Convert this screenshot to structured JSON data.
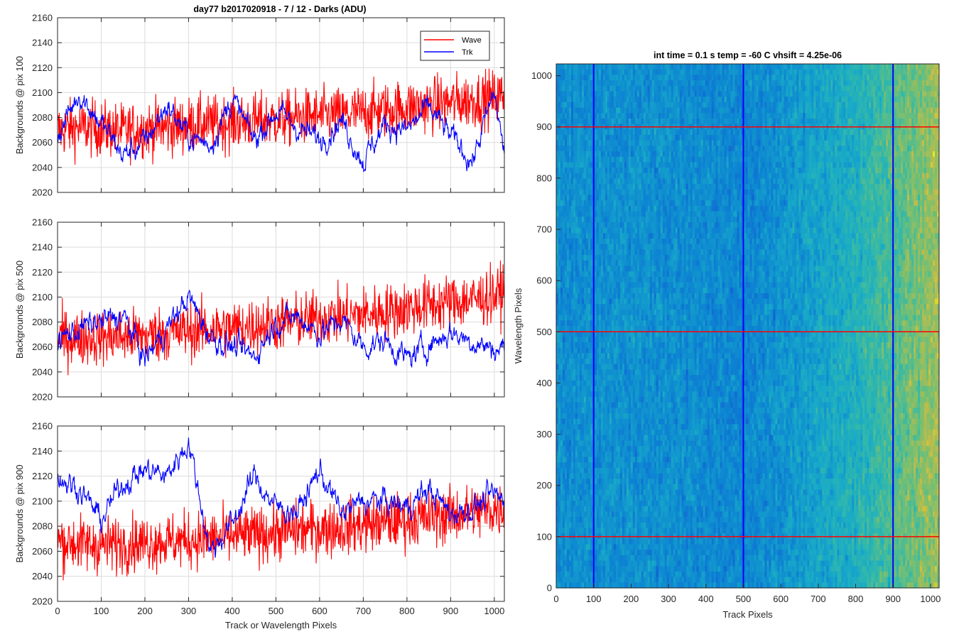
{
  "figure_title": "day77 b2017020918 - 7 / 12 - Darks (ADU)",
  "colors": {
    "wave": "#ff0000",
    "trk": "#0000ff",
    "grid": "#dcdcdc",
    "axis": "#262626"
  },
  "chart_data": [
    {
      "type": "line",
      "ylabel": "Backgrounds @ pix 100",
      "xlim": [
        0,
        1023
      ],
      "ylim": [
        2020,
        2160
      ],
      "xticks": [
        0,
        100,
        200,
        300,
        400,
        500,
        600,
        700,
        800,
        900,
        1000
      ],
      "yticks": [
        2020,
        2040,
        2060,
        2080,
        2100,
        2120,
        2140,
        2160
      ],
      "xticklabels_visible": false,
      "grid": true,
      "legend": {
        "position": "top-right",
        "entries": [
          "Wave",
          "Trk"
        ]
      },
      "series": [
        {
          "name": "Wave",
          "color": "#ff0000",
          "x": [
            0,
            50,
            100,
            150,
            200,
            250,
            300,
            350,
            400,
            450,
            500,
            550,
            600,
            650,
            700,
            750,
            800,
            850,
            900,
            950,
            1000,
            1023
          ],
          "values": [
            2070,
            2072,
            2071,
            2069,
            2071,
            2072,
            2074,
            2075,
            2076,
            2077,
            2078,
            2080,
            2081,
            2082,
            2084,
            2086,
            2088,
            2090,
            2092,
            2094,
            2096,
            2098
          ]
        },
        {
          "name": "Trk",
          "color": "#0000ff",
          "x": [
            0,
            50,
            100,
            150,
            200,
            250,
            300,
            350,
            400,
            450,
            500,
            550,
            600,
            650,
            700,
            750,
            800,
            850,
            900,
            950,
            1000,
            1023
          ],
          "values": [
            2065,
            2100,
            2075,
            2050,
            2060,
            2090,
            2065,
            2058,
            2095,
            2062,
            2085,
            2072,
            2062,
            2078,
            2045,
            2075,
            2070,
            2088,
            2065,
            2045,
            2100,
            2050
          ]
        }
      ]
    },
    {
      "type": "line",
      "ylabel": "Backgrounds @ pix 500",
      "xlim": [
        0,
        1023
      ],
      "ylim": [
        2020,
        2160
      ],
      "xticks": [
        0,
        100,
        200,
        300,
        400,
        500,
        600,
        700,
        800,
        900,
        1000
      ],
      "yticks": [
        2020,
        2040,
        2060,
        2080,
        2100,
        2120,
        2140,
        2160
      ],
      "xticklabels_visible": false,
      "grid": true,
      "series": [
        {
          "name": "Wave",
          "color": "#ff0000",
          "x": [
            0,
            50,
            100,
            150,
            200,
            250,
            300,
            350,
            400,
            450,
            500,
            550,
            600,
            650,
            700,
            750,
            800,
            850,
            900,
            950,
            1000,
            1023
          ],
          "values": [
            2068,
            2067,
            2068,
            2068,
            2069,
            2071,
            2073,
            2074,
            2075,
            2077,
            2079,
            2081,
            2083,
            2085,
            2086,
            2088,
            2091,
            2094,
            2096,
            2098,
            2101,
            2105
          ]
        },
        {
          "name": "Trk",
          "color": "#0000ff",
          "x": [
            0,
            50,
            100,
            150,
            200,
            250,
            300,
            350,
            400,
            450,
            500,
            550,
            600,
            650,
            700,
            750,
            800,
            850,
            900,
            950,
            1000,
            1023
          ],
          "values": [
            2065,
            2075,
            2080,
            2085,
            2050,
            2075,
            2100,
            2068,
            2060,
            2052,
            2080,
            2085,
            2070,
            2082,
            2060,
            2065,
            2050,
            2062,
            2072,
            2065,
            2058,
            2060
          ]
        }
      ]
    },
    {
      "type": "line",
      "ylabel": "Backgrounds @ pix 900",
      "xlabel": "Track or Wavelength Pixels",
      "xlim": [
        0,
        1023
      ],
      "ylim": [
        2020,
        2160
      ],
      "xticks": [
        0,
        100,
        200,
        300,
        400,
        500,
        600,
        700,
        800,
        900,
        1000
      ],
      "yticks": [
        2020,
        2040,
        2060,
        2080,
        2100,
        2120,
        2140,
        2160
      ],
      "xticklabels_visible": true,
      "grid": true,
      "series": [
        {
          "name": "Wave",
          "color": "#ff0000",
          "x": [
            0,
            50,
            100,
            150,
            200,
            250,
            300,
            350,
            400,
            450,
            500,
            550,
            600,
            650,
            700,
            750,
            800,
            850,
            900,
            950,
            1000,
            1023
          ],
          "values": [
            2068,
            2066,
            2065,
            2066,
            2067,
            2068,
            2069,
            2070,
            2072,
            2073,
            2075,
            2077,
            2078,
            2079,
            2081,
            2083,
            2085,
            2087,
            2089,
            2091,
            2093,
            2095
          ]
        },
        {
          "name": "Trk",
          "color": "#0000ff",
          "x": [
            0,
            50,
            100,
            150,
            200,
            250,
            300,
            350,
            400,
            450,
            500,
            550,
            600,
            650,
            700,
            750,
            800,
            850,
            900,
            950,
            1000,
            1023
          ],
          "values": [
            2120,
            2110,
            2085,
            2115,
            2125,
            2120,
            2148,
            2060,
            2082,
            2120,
            2095,
            2092,
            2125,
            2090,
            2100,
            2100,
            2095,
            2110,
            2090,
            2095,
            2105,
            2100
          ]
        }
      ]
    },
    {
      "type": "heatmap",
      "title": "int time = 0.1 s   temp = -60 C   vhsift = 4.25e-06",
      "xlabel": "Track Pixels",
      "ylabel": "Wavelength Pixels",
      "xlim": [
        0,
        1023
      ],
      "ylim": [
        0,
        1023
      ],
      "xticks": [
        0,
        100,
        200,
        300,
        400,
        500,
        600,
        700,
        800,
        900,
        1000
      ],
      "yticks": [
        0,
        100,
        200,
        300,
        400,
        500,
        600,
        700,
        800,
        900,
        1000
      ],
      "colormap": "parula",
      "value_trend": "mostly uniform blue-cyan on the left half, brightening toward green/yellow on the right",
      "overlay_lines": {
        "vertical_blue_x": [
          100,
          500,
          900
        ],
        "horizontal_red_y": [
          100,
          500,
          900
        ]
      }
    }
  ]
}
